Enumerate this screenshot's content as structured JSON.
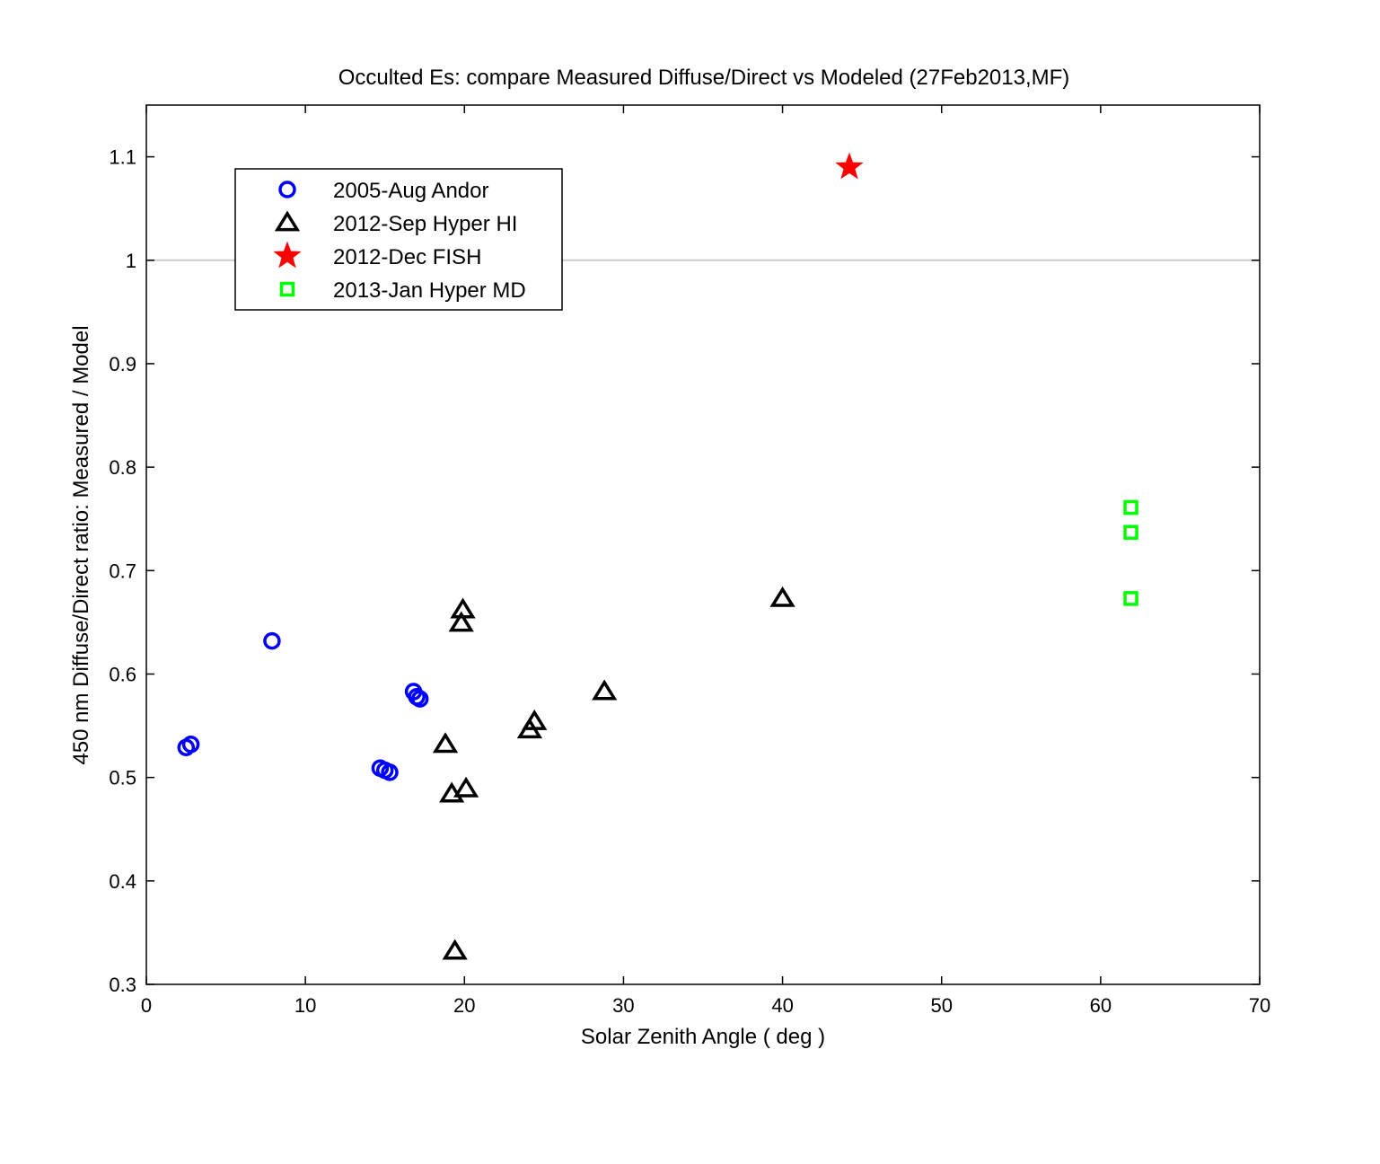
{
  "chart_data": {
    "type": "scatter",
    "title": "Occulted Es: compare Measured Diffuse/Direct vs Modeled  (27Feb2013,MF)",
    "xlabel": "Solar Zenith Angle  ( deg )",
    "ylabel": "450 nm Diffuse/Direct ratio:  Measured / Model",
    "xlim": [
      0,
      70
    ],
    "ylim": [
      0.3,
      1.15
    ],
    "xticks": [
      0,
      10,
      20,
      30,
      40,
      50,
      60,
      70
    ],
    "xtick_labels": [
      "0",
      "10",
      "20",
      "30",
      "40",
      "50",
      "60",
      "70"
    ],
    "yticks": [
      0.3,
      0.4,
      0.5,
      0.6,
      0.7,
      0.8,
      0.9,
      1.0,
      1.1
    ],
    "ytick_labels": [
      "0.3",
      "0.4",
      "0.5",
      "0.6",
      "0.7",
      "0.8",
      "0.9",
      "1",
      "1.1"
    ],
    "reference_line": {
      "y": 1.0,
      "color": "#cccccc"
    },
    "legend_position": "top-left",
    "series": [
      {
        "name": "2005-Aug Andor",
        "marker": "circle",
        "color": "#0000ff",
        "points": [
          [
            2.5,
            0.529
          ],
          [
            2.8,
            0.532
          ],
          [
            7.9,
            0.632
          ],
          [
            16.8,
            0.583
          ],
          [
            17.0,
            0.578
          ],
          [
            17.2,
            0.576
          ],
          [
            14.7,
            0.509
          ],
          [
            15.0,
            0.507
          ],
          [
            15.3,
            0.505
          ]
        ]
      },
      {
        "name": "2012-Sep Hyper HI",
        "marker": "triangle",
        "color": "#000000",
        "points": [
          [
            19.9,
            0.662
          ],
          [
            19.8,
            0.649
          ],
          [
            40.0,
            0.673
          ],
          [
            28.8,
            0.583
          ],
          [
            24.4,
            0.554
          ],
          [
            24.1,
            0.546
          ],
          [
            18.8,
            0.532
          ],
          [
            19.2,
            0.484
          ],
          [
            20.1,
            0.489
          ],
          [
            19.4,
            0.332
          ]
        ]
      },
      {
        "name": "2012-Dec FISH",
        "marker": "star",
        "color": "#ff0000",
        "points": [
          [
            44.2,
            1.09
          ]
        ]
      },
      {
        "name": "2013-Jan Hyper MD",
        "marker": "square",
        "color": "#00ff00",
        "points": [
          [
            61.9,
            0.761
          ],
          [
            61.9,
            0.737
          ],
          [
            61.9,
            0.673
          ]
        ]
      }
    ]
  }
}
